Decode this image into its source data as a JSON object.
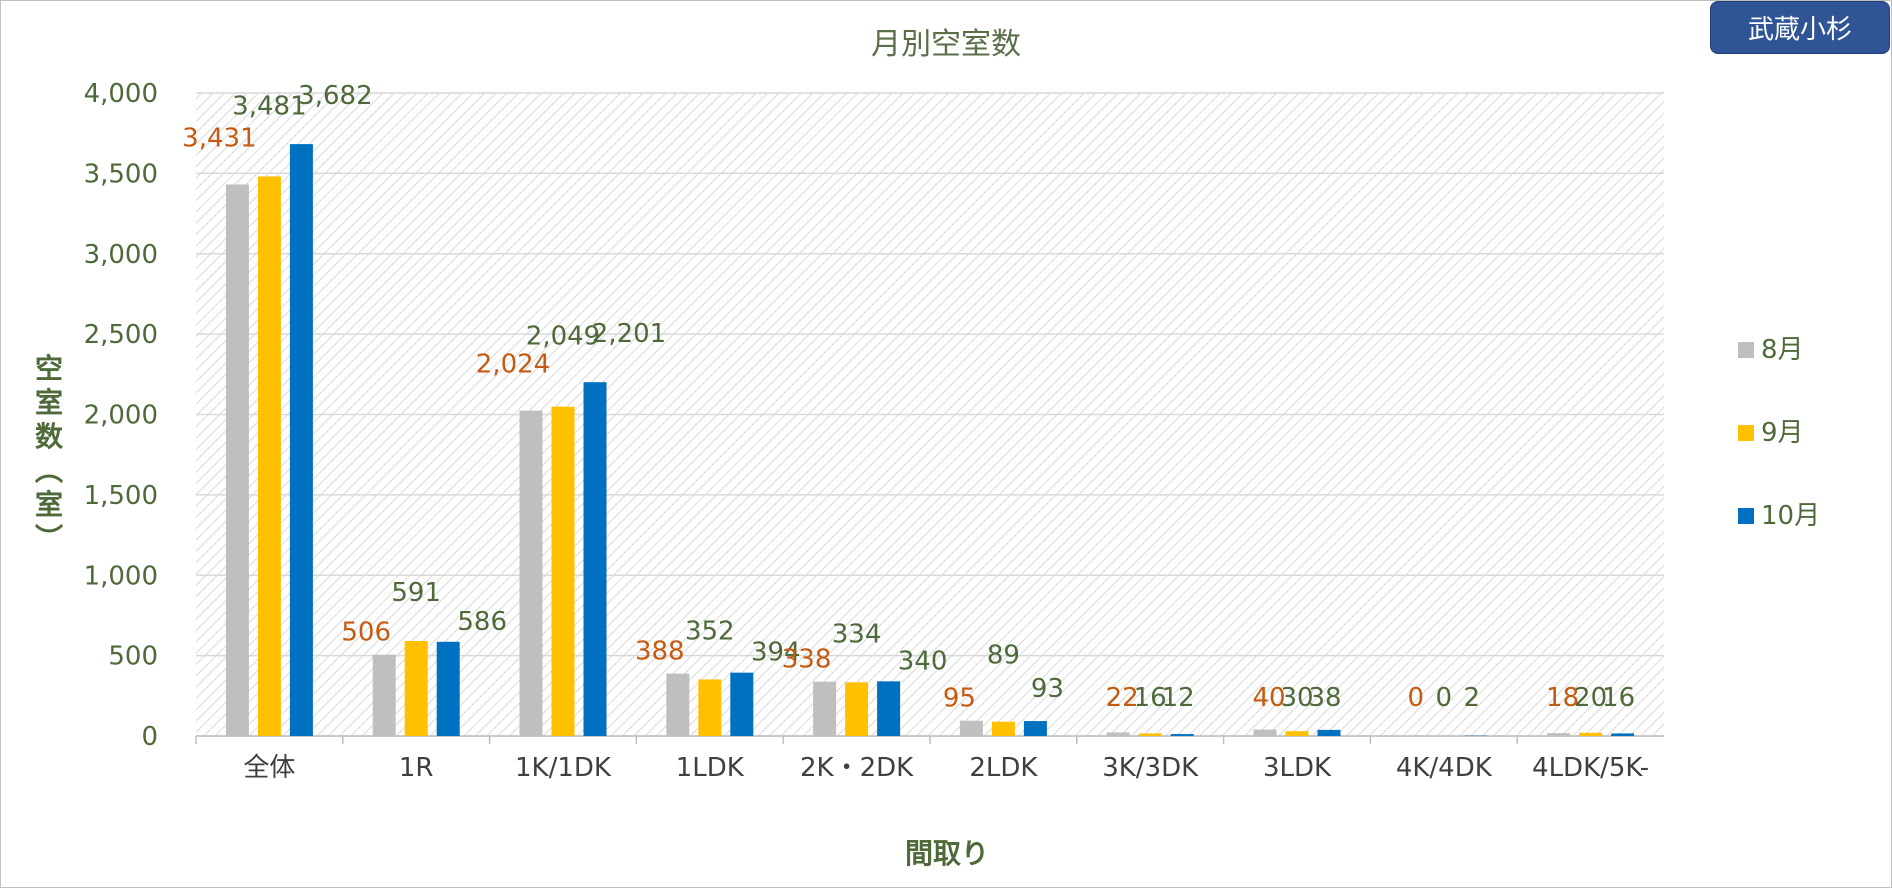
{
  "badge": {
    "label": "武蔵小杉"
  },
  "chart_data": {
    "type": "bar",
    "title": "月別空室数",
    "xlabel": "間取り",
    "ylabel": "空室数（室）",
    "ylim": [
      0,
      4000
    ],
    "yticks": [
      "0",
      "500",
      "1,000",
      "1,500",
      "2,000",
      "2,500",
      "3,000",
      "3,500",
      "4,000"
    ],
    "categories": [
      "全体",
      "1R",
      "1K/1DK",
      "1LDK",
      "2K・2DK",
      "2LDK",
      "3K/3DK",
      "3LDK",
      "4K/4DK",
      "4LDK/5K-"
    ],
    "series": [
      {
        "name": "8月",
        "color": "#bfbfbf",
        "label_color": "#c55a11",
        "values": [
          3431,
          506,
          2024,
          388,
          338,
          95,
          22,
          40,
          0,
          18
        ],
        "labels": [
          "3,431",
          "506",
          "2,024",
          "388",
          "338",
          "95",
          "22",
          "40",
          "0",
          "18"
        ]
      },
      {
        "name": "9月",
        "color": "#ffc000",
        "label_color": "#4e6a3a",
        "values": [
          3481,
          591,
          2049,
          352,
          334,
          89,
          16,
          30,
          0,
          20
        ],
        "labels": [
          "3,481",
          "591",
          "2,049",
          "352",
          "334",
          "89",
          "16",
          "30",
          "0",
          "20"
        ]
      },
      {
        "name": "10月",
        "color": "#0070c0",
        "label_color": "#4e6a3a",
        "values": [
          3682,
          586,
          2201,
          394,
          340,
          93,
          12,
          38,
          2,
          16
        ],
        "labels": [
          "3,682",
          "586",
          "2,201",
          "394",
          "340",
          "93",
          "12",
          "38",
          "2",
          "16"
        ]
      }
    ],
    "grid": true,
    "legend_position": "right"
  }
}
